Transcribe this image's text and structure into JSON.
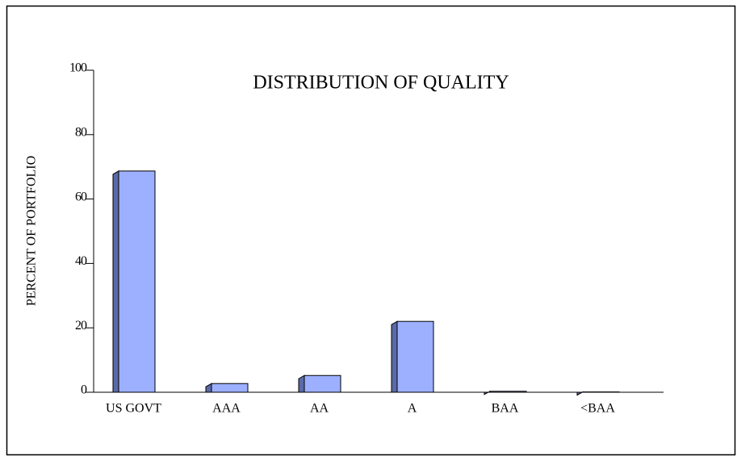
{
  "chart_data": {
    "type": "bar",
    "title": "DISTRIBUTION OF QUALITY",
    "y_label": "PERCENT OF PORTFOLIO",
    "categories": [
      "US GOVT",
      "AAA",
      "AA",
      "A",
      "BAA",
      "<BAA"
    ],
    "values": [
      68.7,
      2.7,
      5.2,
      22,
      0.3,
      0.1
    ],
    "color": "#9cb0ff",
    "side_color": "#5b6aa6",
    "ylim": [
      0,
      100
    ],
    "yticks": [
      0,
      20,
      40,
      60,
      80,
      100
    ]
  }
}
